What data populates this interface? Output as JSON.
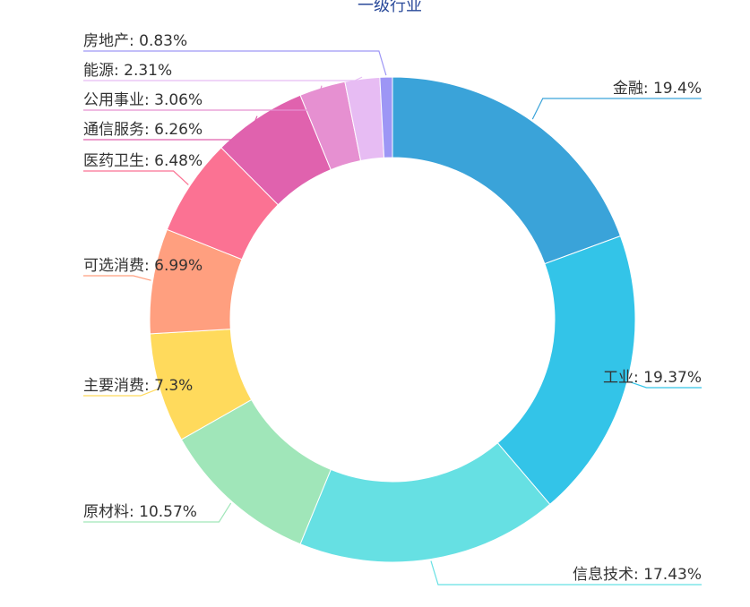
{
  "chart_data": {
    "type": "pie",
    "title": "一级行业",
    "variant": "donut",
    "slices": [
      {
        "name": "金融",
        "value": 19.4,
        "label": "金融: 19.4%",
        "color": "#3aa3d9",
        "label_side": "right"
      },
      {
        "name": "工业",
        "value": 19.37,
        "label": "工业: 19.37%",
        "color": "#33c4e8",
        "label_side": "right"
      },
      {
        "name": "信息技术",
        "value": 17.43,
        "label": "信息技术: 17.43%",
        "color": "#66e0e3",
        "label_side": "right"
      },
      {
        "name": "原材料",
        "value": 10.57,
        "label": "原材料: 10.57%",
        "color": "#a0e6b9",
        "label_side": "left"
      },
      {
        "name": "主要消费",
        "value": 7.3,
        "label": "主要消费: 7.3%",
        "color": "#ffda5c",
        "label_side": "left"
      },
      {
        "name": "可选消费",
        "value": 6.99,
        "label": "可选消费: 6.99%",
        "color": "#ff9f7f",
        "label_side": "left"
      },
      {
        "name": "医药卫生",
        "value": 6.48,
        "label": "医药卫生: 6.48%",
        "color": "#fb7293",
        "label_side": "left"
      },
      {
        "name": "通信服务",
        "value": 6.26,
        "label": "通信服务: 6.26%",
        "color": "#e062ae",
        "label_side": "left"
      },
      {
        "name": "公用事业",
        "value": 3.06,
        "label": "公用事业: 3.06%",
        "color": "#e690d1",
        "label_side": "left"
      },
      {
        "name": "能源",
        "value": 2.31,
        "label": "能源: 2.31%",
        "color": "#e7bcf3",
        "label_side": "left"
      },
      {
        "name": "房地产",
        "value": 0.83,
        "label": "房地产: 0.83%",
        "color": "#9d96f5",
        "label_side": "left"
      }
    ]
  }
}
